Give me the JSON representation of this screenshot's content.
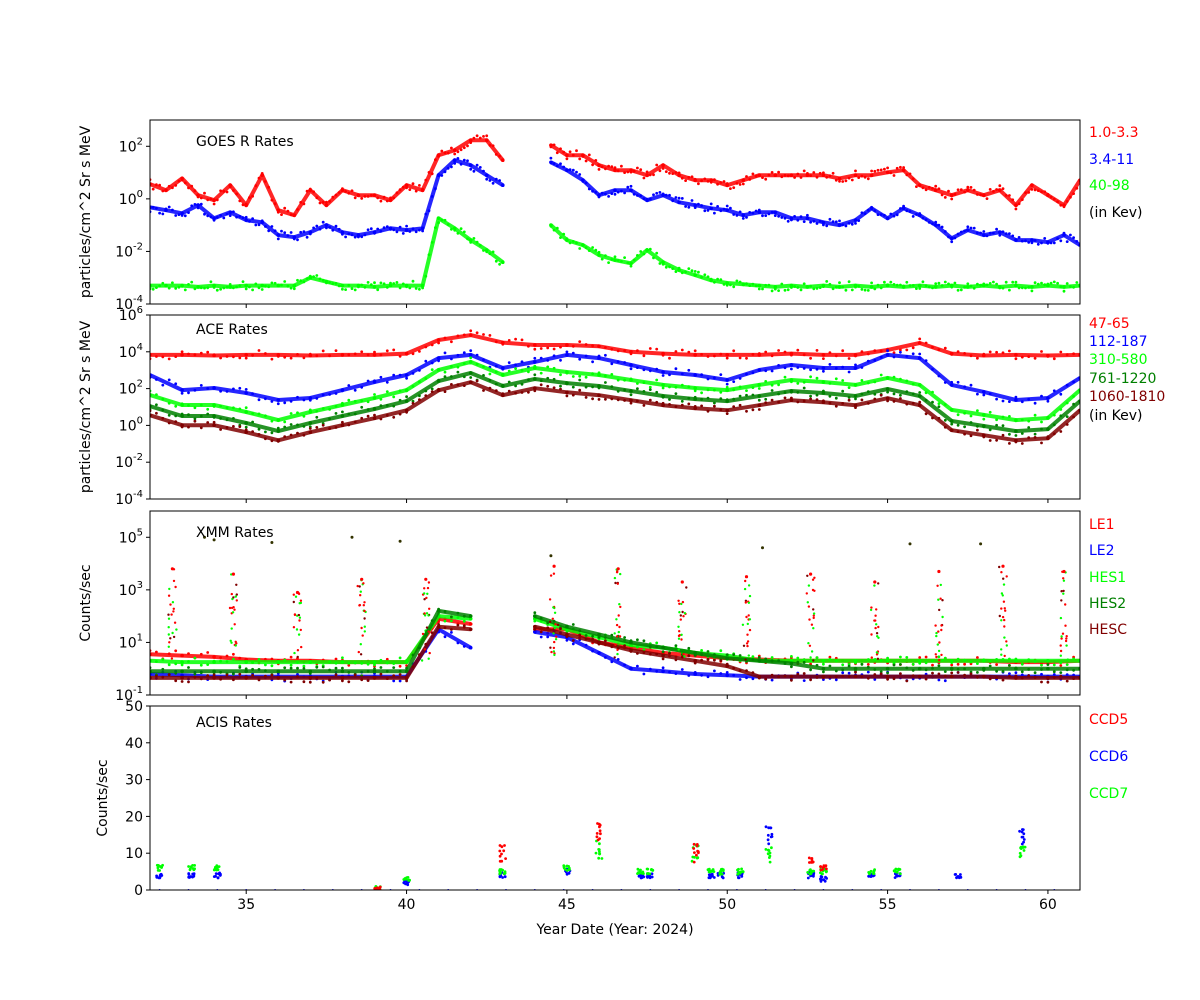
{
  "chart_data": [
    {
      "type": "scatter",
      "title": "GOES R Rates",
      "ylabel": "particles/cm^2 Sr s MeV",
      "yscale": "log",
      "ylim_log10": [
        -4,
        3
      ],
      "yticks_log10": [
        -4,
        -2,
        0,
        2
      ],
      "xlim": [
        32,
        61
      ],
      "x_start": 32,
      "x_step": 0.5,
      "legend_note": "(in Kev)",
      "series": [
        {
          "name": "1.0-3.3",
          "color": "#ff0000",
          "log10_y": [
            0.56,
            0.33,
            0.78,
            0.14,
            -0.05,
            0.52,
            -0.24,
            0.9,
            -0.43,
            -0.62,
            0.33,
            -0.24,
            0.33,
            0.14,
            0.14,
            -0.05,
            0.52,
            0.33,
            1.66,
            1.85,
            2.23,
            2.23,
            1.47,
            null,
            null,
            2.04,
            1.66,
            1.66,
            1.28,
            1.09,
            1.09,
            0.9,
            1.28,
            0.9,
            0.71,
            0.71,
            0.52,
            0.71,
            0.9,
            0.9,
            0.9,
            0.9,
            0.9,
            0.78,
            0.9,
            0.9,
            1.01,
            1.09,
            0.52,
            0.33,
            0.14,
            0.33,
            0.14,
            0.33,
            -0.24,
            0.52,
            0.14,
            -0.24,
            0.71
          ]
        },
        {
          "name": "3.4-11",
          "color": "#0000ff",
          "log10_y": [
            -0.32,
            -0.43,
            -0.55,
            -0.24,
            -0.74,
            -0.51,
            -0.81,
            -0.89,
            -1.38,
            -1.46,
            -1.27,
            -1.0,
            -1.27,
            -1.38,
            -1.27,
            -1.12,
            -1.19,
            -1.12,
            0.9,
            1.47,
            1.28,
            0.9,
            0.52,
            null,
            null,
            1.39,
            1.09,
            0.71,
            0.14,
            0.33,
            0.33,
            -0.05,
            0.14,
            -0.13,
            -0.24,
            -0.36,
            -0.43,
            -0.62,
            -0.51,
            -0.51,
            -0.74,
            -0.74,
            -0.89,
            -1.0,
            -0.81,
            -0.36,
            -0.74,
            -0.36,
            -0.62,
            -1.0,
            -1.5,
            -1.19,
            -1.38,
            -1.27,
            -1.57,
            -1.57,
            -1.65,
            -1.38,
            -1.76
          ]
        },
        {
          "name": "40-98",
          "color": "#00ff00",
          "log10_y": [
            -3.3,
            -3.3,
            -3.3,
            -3.35,
            -3.3,
            -3.35,
            -3.3,
            -3.3,
            -3.3,
            -3.3,
            -3.0,
            -3.15,
            -3.3,
            -3.3,
            -3.35,
            -3.3,
            -3.3,
            -3.3,
            -0.74,
            -1.12,
            -1.57,
            -1.95,
            -2.41,
            null,
            null,
            -1.0,
            -1.57,
            -1.76,
            -2.14,
            -2.33,
            -2.45,
            -1.95,
            -2.41,
            -2.71,
            -2.9,
            -3.1,
            -3.2,
            -3.25,
            -3.3,
            -3.35,
            -3.3,
            -3.35,
            -3.3,
            -3.35,
            -3.3,
            -3.35,
            -3.3,
            -3.35,
            -3.3,
            -3.35,
            -3.3,
            -3.35,
            -3.3,
            -3.35,
            -3.3,
            -3.35,
            -3.3,
            -3.35,
            -3.3
          ]
        }
      ]
    },
    {
      "type": "scatter",
      "title": "ACE Rates",
      "ylabel": "particles/cm^2 Sr s MeV",
      "yscale": "log",
      "ylim_log10": [
        -4,
        6
      ],
      "yticks_log10": [
        -4,
        -2,
        0,
        2,
        4,
        6
      ],
      "xlim": [
        32,
        61
      ],
      "x_start": 32,
      "x_step": 1,
      "legend_note": "(in Kev)",
      "series": [
        {
          "name": "47-65",
          "color": "#ff0000",
          "log10_y": [
            3.83,
            3.83,
            3.8,
            3.83,
            3.83,
            3.8,
            3.83,
            3.83,
            3.9,
            4.64,
            4.91,
            4.5,
            4.37,
            4.37,
            4.3,
            4.0,
            3.9,
            3.83,
            3.83,
            3.83,
            3.9,
            3.83,
            3.83,
            4.1,
            4.48,
            3.9,
            3.8,
            3.83,
            3.8,
            3.83
          ]
        },
        {
          "name": "112-187",
          "color": "#0000ff",
          "log10_y": [
            2.74,
            1.92,
            2.03,
            1.76,
            1.38,
            1.49,
            1.92,
            2.36,
            2.74,
            3.66,
            3.83,
            3.12,
            3.45,
            3.83,
            3.66,
            3.28,
            2.9,
            2.74,
            2.47,
            3.01,
            3.28,
            3.12,
            3.12,
            3.83,
            3.66,
            2.2,
            1.82,
            1.38,
            1.49,
            2.58
          ]
        },
        {
          "name": "310-580",
          "color": "#00ff00",
          "log10_y": [
            1.65,
            1.11,
            1.11,
            0.73,
            0.29,
            0.73,
            1.11,
            1.49,
            1.92,
            3.01,
            3.45,
            2.74,
            3.12,
            2.9,
            2.74,
            2.47,
            2.2,
            2.03,
            1.92,
            2.2,
            2.47,
            2.36,
            2.2,
            2.58,
            2.2,
            0.84,
            0.57,
            0.29,
            0.4,
            1.92
          ]
        },
        {
          "name": "761-1220",
          "color": "#008000",
          "log10_y": [
            1.05,
            0.51,
            0.51,
            0.13,
            -0.31,
            0.13,
            0.51,
            0.89,
            1.32,
            2.41,
            2.85,
            2.14,
            2.52,
            2.3,
            2.14,
            1.87,
            1.6,
            1.43,
            1.32,
            1.6,
            1.87,
            1.76,
            1.6,
            1.98,
            1.6,
            0.24,
            -0.03,
            -0.31,
            -0.2,
            1.32
          ]
        },
        {
          "name": "1060-1810",
          "color": "#800000",
          "log10_y": [
            0.55,
            0.01,
            0.01,
            -0.37,
            -0.81,
            -0.37,
            0.01,
            0.39,
            0.82,
            1.91,
            2.35,
            1.64,
            2.02,
            1.8,
            1.64,
            1.37,
            1.1,
            0.93,
            0.82,
            1.1,
            1.37,
            1.26,
            1.1,
            1.48,
            1.1,
            -0.26,
            -0.53,
            -0.81,
            -0.7,
            0.82
          ]
        }
      ]
    },
    {
      "type": "scatter",
      "title": "XMM Rates",
      "ylabel": "Counts/sec",
      "yscale": "log",
      "ylim_log10": [
        -1,
        6
      ],
      "yticks_log10": [
        -1,
        1,
        3,
        5
      ],
      "xlim": [
        32,
        61
      ],
      "x_start": 32,
      "x_step": 1,
      "series": [
        {
          "name": "LE1",
          "color": "#ff0000",
          "log10_y": [
            0.55,
            0.5,
            0.45,
            0.35,
            0.3,
            0.3,
            0.25,
            0.25,
            0.25,
            1.9,
            1.7,
            null,
            1.5,
            1.5,
            1.0,
            0.8,
            0.6,
            0.5,
            0.4,
            0.35,
            0.3,
            0.3,
            0.3,
            0.3,
            0.3,
            0.3,
            0.3,
            0.25,
            0.25,
            0.3
          ]
        },
        {
          "name": "LE2",
          "color": "#0000ff",
          "log10_y": [
            -0.2,
            -0.25,
            -0.3,
            -0.3,
            -0.3,
            -0.3,
            -0.3,
            -0.3,
            -0.3,
            1.5,
            0.8,
            null,
            1.4,
            1.2,
            0.6,
            0.0,
            -0.1,
            -0.2,
            -0.25,
            -0.3,
            -0.3,
            -0.3,
            -0.3,
            -0.3,
            -0.3,
            -0.3,
            -0.3,
            -0.3,
            -0.3,
            -0.3
          ]
        },
        {
          "name": "HES1",
          "color": "#00ff00",
          "log10_y": [
            0.3,
            0.25,
            0.25,
            0.25,
            0.25,
            0.25,
            0.25,
            0.25,
            0.25,
            2.0,
            1.9,
            null,
            1.9,
            1.5,
            1.2,
            0.9,
            0.8,
            0.6,
            0.5,
            0.3,
            0.3,
            0.3,
            0.3,
            0.3,
            0.3,
            0.3,
            0.3,
            0.3,
            0.3,
            0.3
          ]
        },
        {
          "name": "HES2",
          "color": "#008000",
          "log10_y": [
            -0.1,
            -0.1,
            -0.1,
            -0.1,
            -0.1,
            -0.1,
            -0.1,
            -0.1,
            -0.1,
            2.2,
            2.0,
            null,
            2.0,
            1.6,
            1.3,
            1.0,
            0.8,
            0.6,
            0.4,
            0.3,
            0.2,
            0.0,
            0.0,
            0.0,
            0.0,
            0.0,
            0.0,
            0.0,
            0.0,
            0.0
          ]
        },
        {
          "name": "HESC",
          "color": "#800000",
          "log10_y": [
            -0.35,
            -0.35,
            -0.35,
            -0.35,
            -0.35,
            -0.35,
            -0.35,
            -0.35,
            -0.35,
            1.6,
            1.5,
            null,
            1.6,
            1.3,
            1.0,
            0.7,
            0.5,
            0.3,
            0.1,
            -0.3,
            -0.3,
            -0.3,
            -0.3,
            -0.3,
            -0.3,
            -0.3,
            -0.3,
            -0.35,
            -0.35,
            -0.35
          ]
        }
      ],
      "flares": [
        [
          32.7,
          3.8
        ],
        [
          34.6,
          3.6
        ],
        [
          36.6,
          2.9
        ],
        [
          38.6,
          3.4
        ],
        [
          40.6,
          3.4
        ],
        [
          44.6,
          3.9
        ],
        [
          46.6,
          3.8
        ],
        [
          48.6,
          3.3
        ],
        [
          50.6,
          3.5
        ],
        [
          52.6,
          3.6
        ],
        [
          54.6,
          3.3
        ],
        [
          56.6,
          3.7
        ],
        [
          58.6,
          3.9
        ],
        [
          60.5,
          3.7
        ]
      ],
      "outliers": [
        [
          33.7,
          5.0
        ],
        [
          34.0,
          4.9
        ],
        [
          35.8,
          4.8
        ],
        [
          38.3,
          5.0
        ],
        [
          39.8,
          4.85
        ],
        [
          44.5,
          4.3
        ],
        [
          51.1,
          4.6
        ],
        [
          55.7,
          4.75
        ],
        [
          57.9,
          4.75
        ]
      ]
    },
    {
      "type": "scatter",
      "title": "ACIS Rates",
      "ylabel": "Counts/sec",
      "yscale": "linear",
      "ylim": [
        0,
        50
      ],
      "yticks": [
        0,
        10,
        20,
        30,
        40,
        50
      ],
      "xlim": [
        32,
        61
      ],
      "xticks": [
        35,
        40,
        45,
        50,
        55,
        60
      ],
      "xlabel": "Year Date (Year: 2024)",
      "series": [
        {
          "name": "CCD5",
          "color": "#ff0000"
        },
        {
          "name": "CCD6",
          "color": "#0000ff"
        },
        {
          "name": "CCD7",
          "color": "#00ff00"
        }
      ],
      "clusters": [
        {
          "x": 32.3,
          "ccd5": null,
          "ccd6": 4,
          "ccd7": 6
        },
        {
          "x": 33.3,
          "ccd5": null,
          "ccd6": 4,
          "ccd7": 6
        },
        {
          "x": 34.1,
          "ccd5": null,
          "ccd6": 4,
          "ccd7": 6
        },
        {
          "x": 39.1,
          "ccd5": 0.3,
          "ccd6": null,
          "ccd7": 0.3
        },
        {
          "x": 40.0,
          "ccd5": null,
          "ccd6": 2,
          "ccd7": 3
        },
        {
          "x": 43.0,
          "ccd5": 10,
          "ccd6": 4,
          "ccd7": 5
        },
        {
          "x": 45.0,
          "ccd5": null,
          "ccd6": 5,
          "ccd7": 6
        },
        {
          "x": 46.0,
          "ccd5": 16,
          "ccd6": null,
          "ccd7": 11
        },
        {
          "x": 47.3,
          "ccd5": null,
          "ccd6": 4,
          "ccd7": 5
        },
        {
          "x": 47.6,
          "ccd5": null,
          "ccd6": 4,
          "ccd7": 5
        },
        {
          "x": 49.0,
          "ccd5": 10,
          "ccd6": null,
          "ccd7": 10
        },
        {
          "x": 49.5,
          "ccd5": null,
          "ccd6": 4,
          "ccd7": 5
        },
        {
          "x": 49.8,
          "ccd5": null,
          "ccd6": 4,
          "ccd7": 5
        },
        {
          "x": 50.4,
          "ccd5": null,
          "ccd6": 4,
          "ccd7": 5
        },
        {
          "x": 51.3,
          "ccd5": null,
          "ccd6": 15,
          "ccd7": 10
        },
        {
          "x": 52.6,
          "ccd5": 8,
          "ccd6": 4,
          "ccd7": 5
        },
        {
          "x": 53.0,
          "ccd5": 6,
          "ccd6": 3,
          "ccd7": 5
        },
        {
          "x": 54.5,
          "ccd5": null,
          "ccd6": 4,
          "ccd7": 5
        },
        {
          "x": 55.3,
          "ccd5": null,
          "ccd6": 4,
          "ccd7": 5
        },
        {
          "x": 57.2,
          "ccd5": null,
          "ccd6": 4,
          "ccd7": null
        },
        {
          "x": 59.2,
          "ccd5": null,
          "ccd6": 15,
          "ccd7": 11
        }
      ]
    }
  ]
}
